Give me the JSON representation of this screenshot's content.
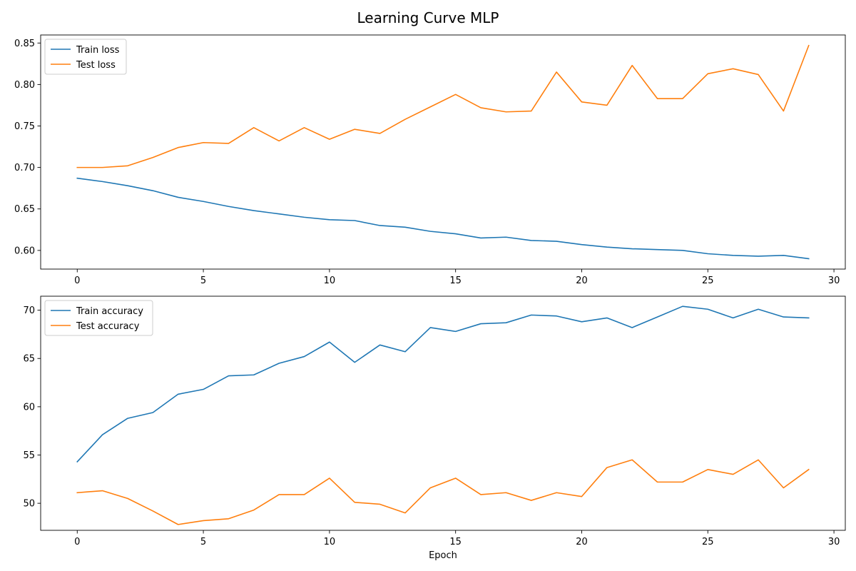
{
  "figure": {
    "title": "Learning Curve MLP"
  },
  "colors": {
    "blue": "#1f77b4",
    "orange": "#ff7f0e"
  },
  "chart_data": [
    {
      "type": "line",
      "title": "",
      "xlabel": "",
      "ylabel": "",
      "xlim": [
        -1.45,
        30.45
      ],
      "ylim": [
        0.5775,
        0.8597
      ],
      "xticks": [
        0,
        5,
        10,
        15,
        20,
        25,
        30
      ],
      "yticks": [
        0.6,
        0.65,
        0.7,
        0.75,
        0.8,
        0.85
      ],
      "ytick_labels": [
        "0.60",
        "0.65",
        "0.70",
        "0.75",
        "0.80",
        "0.85"
      ],
      "grid": false,
      "legend_position": "upper-left",
      "x": [
        0,
        1,
        2,
        3,
        4,
        5,
        6,
        7,
        8,
        9,
        10,
        11,
        12,
        13,
        14,
        15,
        16,
        17,
        18,
        19,
        20,
        21,
        22,
        23,
        24,
        25,
        26,
        27,
        28,
        29
      ],
      "series": [
        {
          "name": "Train loss",
          "color": "#1f77b4",
          "values": [
            0.687,
            0.683,
            0.678,
            0.672,
            0.664,
            0.659,
            0.653,
            0.648,
            0.644,
            0.64,
            0.637,
            0.636,
            0.63,
            0.628,
            0.623,
            0.62,
            0.615,
            0.616,
            0.612,
            0.611,
            0.607,
            0.604,
            0.602,
            0.601,
            0.6,
            0.596,
            0.594,
            0.593,
            0.594,
            0.59
          ]
        },
        {
          "name": "Test loss",
          "color": "#ff7f0e",
          "values": [
            0.7,
            0.7,
            0.702,
            0.712,
            0.724,
            0.73,
            0.729,
            0.748,
            0.732,
            0.748,
            0.734,
            0.746,
            0.741,
            0.758,
            0.773,
            0.788,
            0.772,
            0.767,
            0.768,
            0.815,
            0.779,
            0.775,
            0.823,
            0.783,
            0.783,
            0.813,
            0.819,
            0.812,
            0.768,
            0.847
          ]
        }
      ]
    },
    {
      "type": "line",
      "title": "",
      "xlabel": "Epoch",
      "ylabel": "",
      "xlim": [
        -1.45,
        30.45
      ],
      "ylim": [
        47.2,
        71.45
      ],
      "xticks": [
        0,
        5,
        10,
        15,
        20,
        25,
        30
      ],
      "yticks": [
        50,
        55,
        60,
        65,
        70
      ],
      "ytick_labels": [
        "50",
        "55",
        "60",
        "65",
        "70"
      ],
      "grid": false,
      "legend_position": "upper-left",
      "x": [
        0,
        1,
        2,
        3,
        4,
        5,
        6,
        7,
        8,
        9,
        10,
        11,
        12,
        13,
        14,
        15,
        16,
        17,
        18,
        19,
        20,
        21,
        22,
        23,
        24,
        25,
        26,
        27,
        28,
        29
      ],
      "series": [
        {
          "name": "Train accuracy",
          "color": "#1f77b4",
          "values": [
            54.3,
            57.1,
            58.8,
            59.4,
            61.3,
            61.8,
            63.2,
            63.3,
            64.5,
            65.2,
            66.7,
            64.6,
            66.4,
            65.7,
            68.2,
            67.8,
            68.6,
            68.7,
            69.5,
            69.4,
            68.8,
            69.2,
            68.2,
            69.3,
            70.4,
            70.1,
            69.2,
            70.1,
            69.3,
            69.2
          ]
        },
        {
          "name": "Test accuracy",
          "color": "#ff7f0e",
          "values": [
            51.1,
            51.3,
            50.5,
            49.2,
            47.8,
            48.2,
            48.4,
            49.3,
            50.9,
            50.9,
            52.6,
            50.1,
            49.9,
            49.0,
            51.6,
            52.6,
            50.9,
            51.1,
            50.3,
            51.1,
            50.7,
            53.7,
            54.5,
            52.2,
            52.2,
            53.5,
            53.0,
            54.5,
            51.6,
            53.5
          ]
        }
      ]
    }
  ]
}
